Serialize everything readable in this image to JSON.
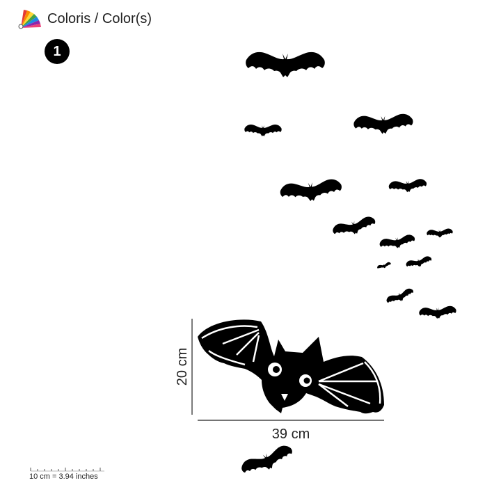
{
  "header": {
    "palette_icon": "color-palette-icon",
    "title": "Coloris / Color(s)"
  },
  "badge": {
    "number": "1"
  },
  "dimensions": {
    "width_label": "39 cm",
    "height_label": "20 cm"
  },
  "scale": {
    "label": "10 cm = 3.94 inches"
  },
  "colors": {
    "ink": "#000000",
    "dimension_line": "#222222"
  }
}
